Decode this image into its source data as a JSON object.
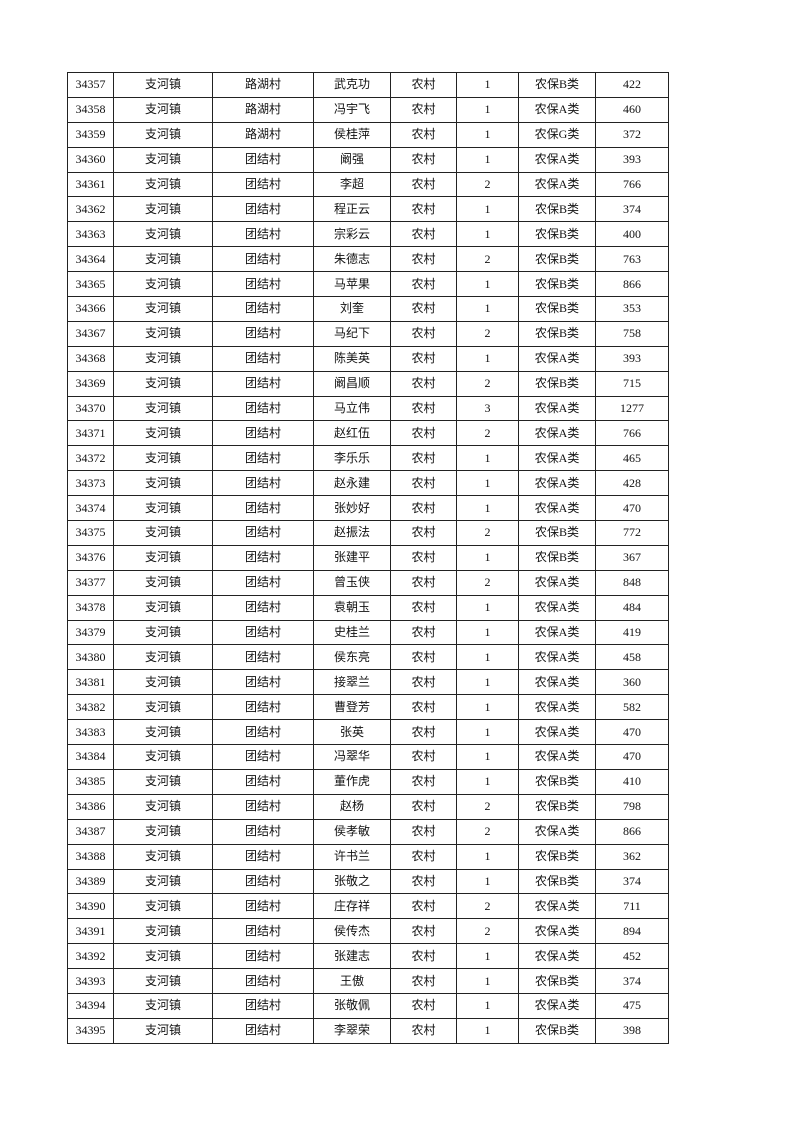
{
  "table": {
    "rows": [
      [
        "34357",
        "支河镇",
        "路湖村",
        "武克功",
        "农村",
        "1",
        "农保B类",
        "422"
      ],
      [
        "34358",
        "支河镇",
        "路湖村",
        "冯宇飞",
        "农村",
        "1",
        "农保A类",
        "460"
      ],
      [
        "34359",
        "支河镇",
        "路湖村",
        "侯桂萍",
        "农村",
        "1",
        "农保G类",
        "372"
      ],
      [
        "34360",
        "支河镇",
        "团结村",
        "阚强",
        "农村",
        "1",
        "农保A类",
        "393"
      ],
      [
        "34361",
        "支河镇",
        "团结村",
        "李超",
        "农村",
        "2",
        "农保A类",
        "766"
      ],
      [
        "34362",
        "支河镇",
        "团结村",
        "程正云",
        "农村",
        "1",
        "农保B类",
        "374"
      ],
      [
        "34363",
        "支河镇",
        "团结村",
        "宗彩云",
        "农村",
        "1",
        "农保B类",
        "400"
      ],
      [
        "34364",
        "支河镇",
        "团结村",
        "朱德志",
        "农村",
        "2",
        "农保B类",
        "763"
      ],
      [
        "34365",
        "支河镇",
        "团结村",
        "马苹果",
        "农村",
        "1",
        "农保B类",
        "866"
      ],
      [
        "34366",
        "支河镇",
        "团结村",
        "刘奎",
        "农村",
        "1",
        "农保B类",
        "353"
      ],
      [
        "34367",
        "支河镇",
        "团结村",
        "马纪下",
        "农村",
        "2",
        "农保B类",
        "758"
      ],
      [
        "34368",
        "支河镇",
        "团结村",
        "陈美英",
        "农村",
        "1",
        "农保A类",
        "393"
      ],
      [
        "34369",
        "支河镇",
        "团结村",
        "阚昌顺",
        "农村",
        "2",
        "农保B类",
        "715"
      ],
      [
        "34370",
        "支河镇",
        "团结村",
        "马立伟",
        "农村",
        "3",
        "农保A类",
        "1277"
      ],
      [
        "34371",
        "支河镇",
        "团结村",
        "赵红伍",
        "农村",
        "2",
        "农保A类",
        "766"
      ],
      [
        "34372",
        "支河镇",
        "团结村",
        "李乐乐",
        "农村",
        "1",
        "农保A类",
        "465"
      ],
      [
        "34373",
        "支河镇",
        "团结村",
        "赵永建",
        "农村",
        "1",
        "农保A类",
        "428"
      ],
      [
        "34374",
        "支河镇",
        "团结村",
        "张妙好",
        "农村",
        "1",
        "农保A类",
        "470"
      ],
      [
        "34375",
        "支河镇",
        "团结村",
        "赵振法",
        "农村",
        "2",
        "农保B类",
        "772"
      ],
      [
        "34376",
        "支河镇",
        "团结村",
        "张建平",
        "农村",
        "1",
        "农保B类",
        "367"
      ],
      [
        "34377",
        "支河镇",
        "团结村",
        "曾玉侠",
        "农村",
        "2",
        "农保A类",
        "848"
      ],
      [
        "34378",
        "支河镇",
        "团结村",
        "袁朝玉",
        "农村",
        "1",
        "农保A类",
        "484"
      ],
      [
        "34379",
        "支河镇",
        "团结村",
        "史桂兰",
        "农村",
        "1",
        "农保A类",
        "419"
      ],
      [
        "34380",
        "支河镇",
        "团结村",
        "侯东亮",
        "农村",
        "1",
        "农保A类",
        "458"
      ],
      [
        "34381",
        "支河镇",
        "团结村",
        "接翠兰",
        "农村",
        "1",
        "农保A类",
        "360"
      ],
      [
        "34382",
        "支河镇",
        "团结村",
        "曹登芳",
        "农村",
        "1",
        "农保A类",
        "582"
      ],
      [
        "34383",
        "支河镇",
        "团结村",
        "张英",
        "农村",
        "1",
        "农保A类",
        "470"
      ],
      [
        "34384",
        "支河镇",
        "团结村",
        "冯翠华",
        "农村",
        "1",
        "农保A类",
        "470"
      ],
      [
        "34385",
        "支河镇",
        "团结村",
        "董作虎",
        "农村",
        "1",
        "农保B类",
        "410"
      ],
      [
        "34386",
        "支河镇",
        "团结村",
        "赵杨",
        "农村",
        "2",
        "农保B类",
        "798"
      ],
      [
        "34387",
        "支河镇",
        "团结村",
        "侯孝敏",
        "农村",
        "2",
        "农保A类",
        "866"
      ],
      [
        "34388",
        "支河镇",
        "团结村",
        "许书兰",
        "农村",
        "1",
        "农保B类",
        "362"
      ],
      [
        "34389",
        "支河镇",
        "团结村",
        "张敬之",
        "农村",
        "1",
        "农保B类",
        "374"
      ],
      [
        "34390",
        "支河镇",
        "团结村",
        "庄存祥",
        "农村",
        "2",
        "农保A类",
        "711"
      ],
      [
        "34391",
        "支河镇",
        "团结村",
        "侯传杰",
        "农村",
        "2",
        "农保A类",
        "894"
      ],
      [
        "34392",
        "支河镇",
        "团结村",
        "张建志",
        "农村",
        "1",
        "农保A类",
        "452"
      ],
      [
        "34393",
        "支河镇",
        "团结村",
        "王傲",
        "农村",
        "1",
        "农保B类",
        "374"
      ],
      [
        "34394",
        "支河镇",
        "团结村",
        "张敬佩",
        "农村",
        "1",
        "农保A类",
        "475"
      ],
      [
        "34395",
        "支河镇",
        "团结村",
        "李翠荣",
        "农村",
        "1",
        "农保B类",
        "398"
      ]
    ]
  }
}
